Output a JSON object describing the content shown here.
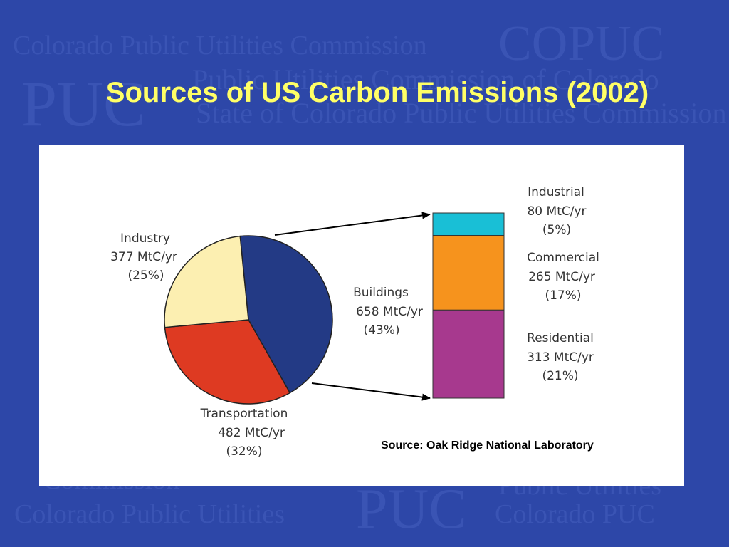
{
  "slide": {
    "title": "Sources of US Carbon Emissions (2002)",
    "source": "Source: Oak Ridge National Laboratory"
  },
  "watermark": {
    "lines": [
      "Colorado Public Utilities Commission",
      "COPUC",
      "PUC",
      "Public Utilities Commission of Colorado",
      "State of Colorado Public Utilities Commission",
      "Colorado Public Utilities",
      "PUC",
      "Colorado PUC",
      "Commission",
      "Public Utilities"
    ]
  },
  "chart_data": [
    {
      "type": "pie",
      "slices": [
        {
          "label": "Buildings",
          "value": 658,
          "unit": "MtC/yr",
          "percent": "(43%)",
          "color": "#233a85"
        },
        {
          "label": "Transportation",
          "value": 482,
          "unit": "MtC/yr",
          "percent": "(32%)",
          "color": "#de3a22"
        },
        {
          "label": "Industry",
          "value": 377,
          "unit": "MtC/yr",
          "percent": "(25%)",
          "color": "#fcefb1"
        }
      ],
      "labels": {
        "industry": {
          "line1": "Industry",
          "line2": "377  MtC/yr",
          "line3": "(25%)"
        },
        "buildings": {
          "line1": "Buildings",
          "line2": "658 MtC/yr",
          "line3": "(43%)"
        },
        "transportation": {
          "line1": "Transportation",
          "line2": "482  MtC/yr",
          "line3": "(32%)"
        }
      }
    },
    {
      "type": "bar",
      "stacked": true,
      "segments": [
        {
          "label": "Industrial",
          "value": 80,
          "unit": "MtC/yr",
          "percent": "(5%)",
          "color": "#19bfd6"
        },
        {
          "label": "Commercial",
          "value": 265,
          "unit": "MtC/yr",
          "percent": "(17%)",
          "color": "#f6931d"
        },
        {
          "label": "Residential",
          "value": 313,
          "unit": "MtC/yr",
          "percent": "(21%)",
          "color": "#a7398e"
        }
      ],
      "labels": {
        "industrial": {
          "line1": "Industrial",
          "line2": "80 MtC/yr",
          "line3": "(5%)"
        },
        "commercial": {
          "line1": "Commercial",
          "line2": "265 MtC/yr",
          "line3": "(17%)"
        },
        "residential": {
          "line1": "Residential",
          "line2": "313  MtC/yr",
          "line3": "(21%)"
        }
      }
    }
  ]
}
